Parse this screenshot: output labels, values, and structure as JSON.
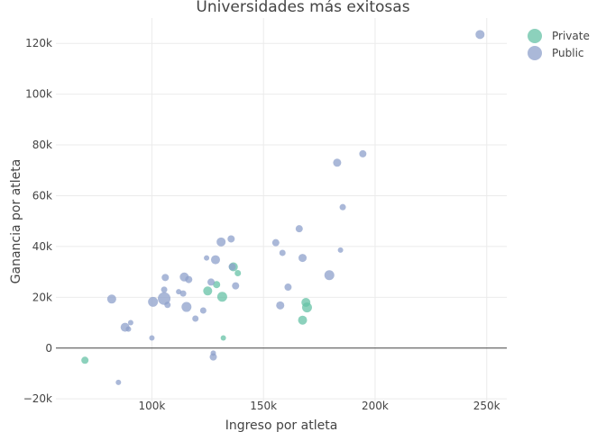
{
  "chart_data": {
    "type": "scatter",
    "title": "Universidades más exitosas",
    "xlabel": "Ingreso por atleta",
    "ylabel": "Ganancia por atleta",
    "xlim": [
      57000,
      259000
    ],
    "ylim": [
      -21000,
      130000
    ],
    "x_ticks": [
      {
        "value": 100000,
        "label": "100k"
      },
      {
        "value": 150000,
        "label": "150k"
      },
      {
        "value": 200000,
        "label": "200k"
      },
      {
        "value": 250000,
        "label": "250k"
      }
    ],
    "y_ticks": [
      {
        "value": -20000,
        "label": "−20k"
      },
      {
        "value": 0,
        "label": "0"
      },
      {
        "value": 20000,
        "label": "20k"
      },
      {
        "value": 40000,
        "label": "40k"
      },
      {
        "value": 60000,
        "label": "60k"
      },
      {
        "value": 80000,
        "label": "80k"
      },
      {
        "value": 100000,
        "label": "100k"
      },
      {
        "value": 120000,
        "label": "120k"
      }
    ],
    "grid": true,
    "legend": "top-right",
    "series": [
      {
        "name": "Private",
        "color": "#66c2a5",
        "points": [
          {
            "x": 70000,
            "y": -4800,
            "size": 4
          },
          {
            "x": 125000,
            "y": 22500,
            "size": 5
          },
          {
            "x": 129000,
            "y": 25000,
            "size": 4
          },
          {
            "x": 131500,
            "y": 20200,
            "size": 5.5
          },
          {
            "x": 132000,
            "y": 4000,
            "size": 3
          },
          {
            "x": 136500,
            "y": 32000,
            "size": 5
          },
          {
            "x": 138500,
            "y": 29500,
            "size": 3.5
          },
          {
            "x": 167500,
            "y": 11000,
            "size": 5
          },
          {
            "x": 169000,
            "y": 18000,
            "size": 5
          },
          {
            "x": 169500,
            "y": 16000,
            "size": 5.5
          }
        ]
      },
      {
        "name": "Public",
        "color": "#8da0cb",
        "points": [
          {
            "x": 82000,
            "y": 19300,
            "size": 5
          },
          {
            "x": 85000,
            "y": -13500,
            "size": 3
          },
          {
            "x": 88000,
            "y": 8200,
            "size": 5
          },
          {
            "x": 89500,
            "y": 7500,
            "size": 3
          },
          {
            "x": 90500,
            "y": 10000,
            "size": 3
          },
          {
            "x": 100000,
            "y": 4000,
            "size": 3
          },
          {
            "x": 100500,
            "y": 18200,
            "size": 5.5
          },
          {
            "x": 105500,
            "y": 19500,
            "size": 7
          },
          {
            "x": 105500,
            "y": 23000,
            "size": 3.5
          },
          {
            "x": 106000,
            "y": 27800,
            "size": 4
          },
          {
            "x": 107000,
            "y": 17000,
            "size": 3.5
          },
          {
            "x": 112000,
            "y": 22200,
            "size": 3
          },
          {
            "x": 114000,
            "y": 21500,
            "size": 3.5
          },
          {
            "x": 114500,
            "y": 28000,
            "size": 5
          },
          {
            "x": 115500,
            "y": 16200,
            "size": 5.5
          },
          {
            "x": 116500,
            "y": 27000,
            "size": 4
          },
          {
            "x": 119500,
            "y": 11600,
            "size": 3.5
          },
          {
            "x": 123000,
            "y": 14800,
            "size": 3.5
          },
          {
            "x": 124500,
            "y": 35500,
            "size": 3
          },
          {
            "x": 126500,
            "y": 26000,
            "size": 4
          },
          {
            "x": 127500,
            "y": -2000,
            "size": 3
          },
          {
            "x": 127500,
            "y": -3500,
            "size": 4
          },
          {
            "x": 128500,
            "y": 34800,
            "size": 5
          },
          {
            "x": 131000,
            "y": 41800,
            "size": 5
          },
          {
            "x": 135500,
            "y": 43000,
            "size": 4
          },
          {
            "x": 136000,
            "y": 32000,
            "size": 4
          },
          {
            "x": 137500,
            "y": 24500,
            "size": 4
          },
          {
            "x": 155500,
            "y": 41500,
            "size": 4
          },
          {
            "x": 157500,
            "y": 16800,
            "size": 4.5
          },
          {
            "x": 158500,
            "y": 37500,
            "size": 3.5
          },
          {
            "x": 161000,
            "y": 24000,
            "size": 4
          },
          {
            "x": 166000,
            "y": 47000,
            "size": 4
          },
          {
            "x": 167500,
            "y": 35500,
            "size": 4.5
          },
          {
            "x": 179500,
            "y": 28700,
            "size": 5.5
          },
          {
            "x": 183000,
            "y": 73000,
            "size": 4.5
          },
          {
            "x": 184500,
            "y": 38600,
            "size": 3
          },
          {
            "x": 185500,
            "y": 55500,
            "size": 3.5
          },
          {
            "x": 194500,
            "y": 76500,
            "size": 4
          },
          {
            "x": 247000,
            "y": 123500,
            "size": 5
          }
        ]
      }
    ]
  }
}
